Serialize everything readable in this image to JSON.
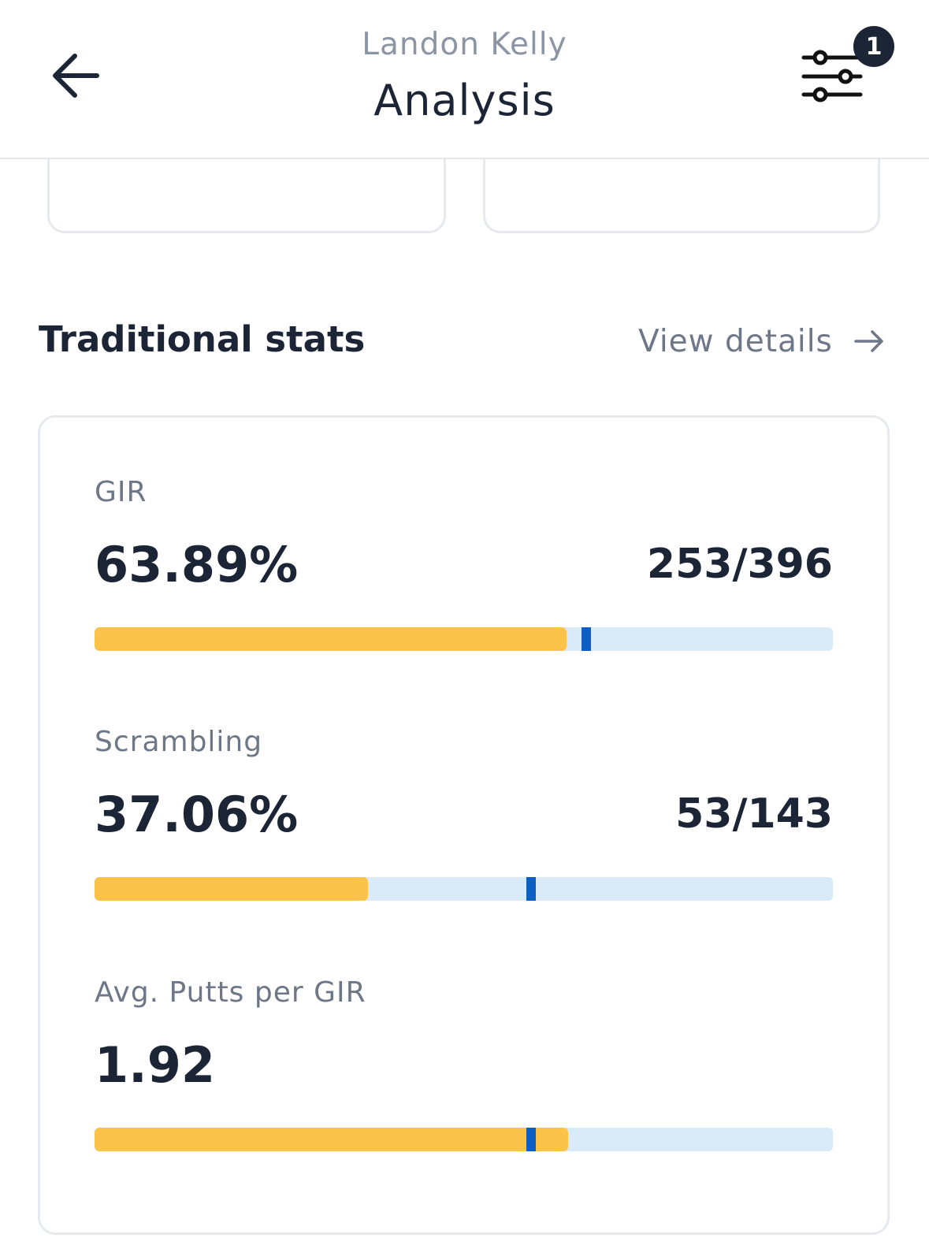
{
  "header": {
    "subtitle": "Landon Kelly",
    "title": "Analysis",
    "filter_badge": "1"
  },
  "icons": {
    "back": "arrow-left-icon",
    "filter": "sliders-icon",
    "view_details": "arrow-right-icon"
  },
  "section": {
    "title": "Traditional stats",
    "view_details_label": "View details"
  },
  "stats": [
    {
      "label": "GIR",
      "value": "63.89%",
      "ratio": "253/396",
      "fill_fraction": 0.6389,
      "marker_fraction": 0.66
    },
    {
      "label": "Scrambling",
      "value": "37.06%",
      "ratio": "53/143",
      "fill_fraction": 0.3706,
      "marker_fraction": 0.585
    },
    {
      "label": "Avg. Putts per GIR",
      "value": "1.92",
      "ratio": "",
      "fill_fraction": 0.641,
      "marker_fraction": 0.585
    }
  ],
  "colors": {
    "fill": "#fbc34a",
    "track": "#d9eaf9",
    "marker": "#0d5fc4",
    "text_dark": "#1b2536",
    "text_muted": "#6d7788"
  }
}
